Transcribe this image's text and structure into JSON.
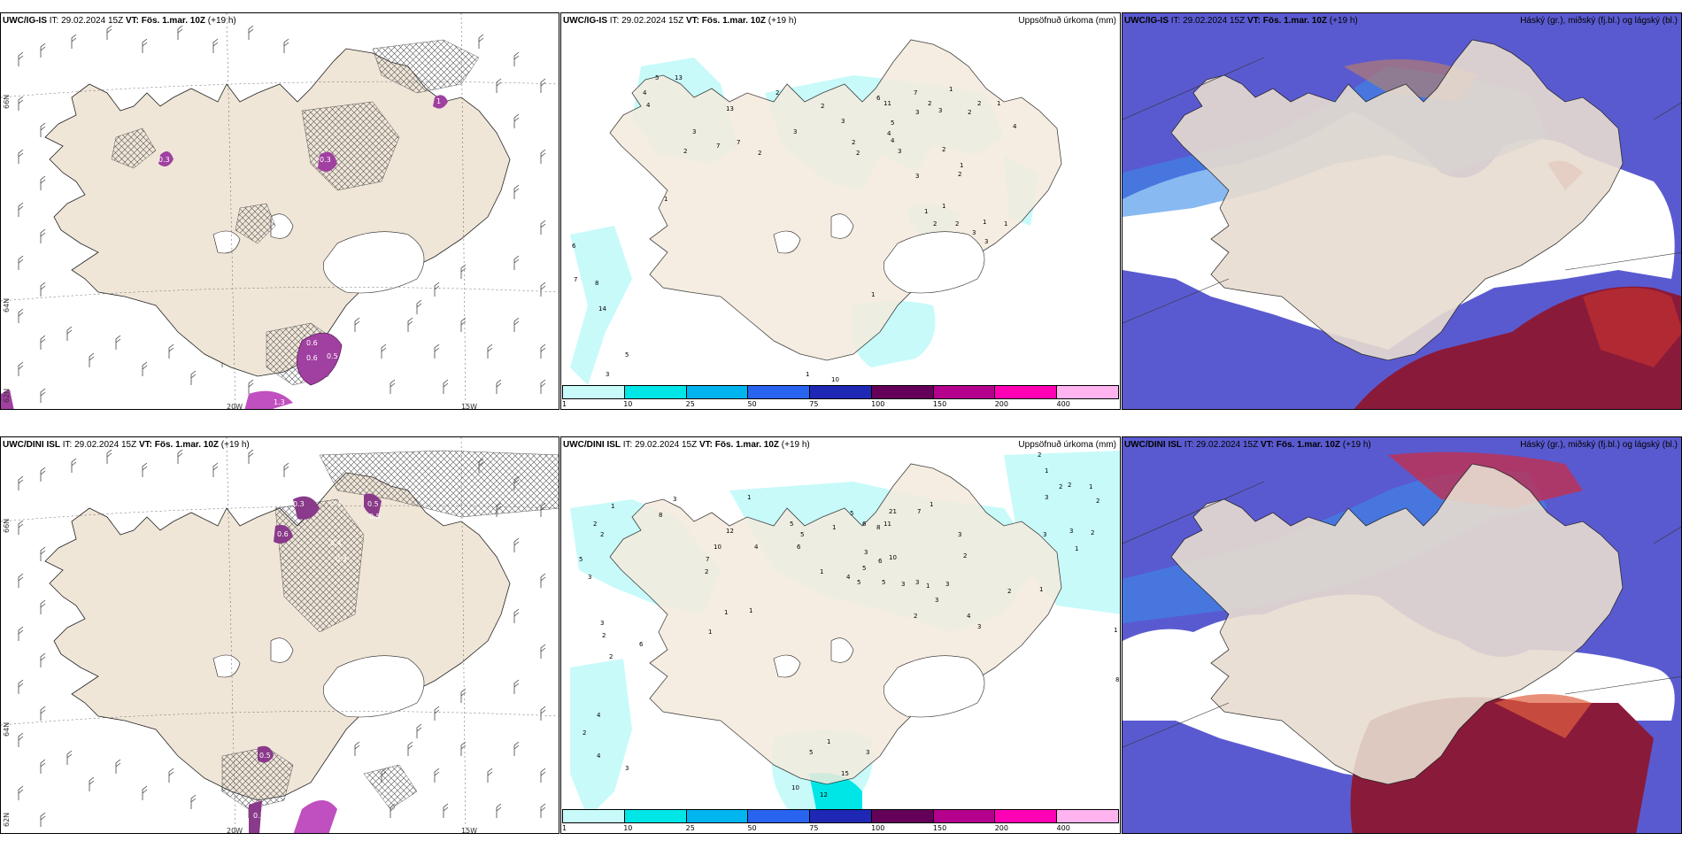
{
  "rows": [
    {
      "panels": [
        {
          "model": "UWC/IG-IS",
          "it_label": "IT:",
          "it": "29.02.2024 15Z",
          "vt_label": "VT: Fös. 1.mar. 10Z",
          "lead": "(+19 h)",
          "right": ""
        },
        {
          "model": "UWC/IG-IS",
          "it_label": "IT:",
          "it": "29.02.2024 15Z",
          "vt_label": "VT: Fös. 1.mar. 10Z",
          "lead": "(+19 h)",
          "right": "Uppsöfnuð úrkoma (mm)"
        },
        {
          "model": "UWC/IG-IS",
          "it_label": "IT:",
          "it": "29.02.2024 15Z",
          "vt_label": "VT: Fös. 1.mar. 10Z",
          "lead": "(+19 h)",
          "right": "Háský (gr.), miðský (fj.bl.) og lágský (bl.)"
        }
      ]
    },
    {
      "panels": [
        {
          "model": "UWC/DINI ISL",
          "it_label": "IT:",
          "it": "29.02.2024 15Z",
          "vt_label": "VT: Fös. 1.mar. 10Z",
          "lead": "(+19 h)",
          "right": ""
        },
        {
          "model": "UWC/DINI ISL",
          "it_label": "IT:",
          "it": "29.02.2024 15Z",
          "vt_label": "VT: Fös. 1.mar. 10Z",
          "lead": "(+19 h)",
          "right": "Uppsöfnuð úrkoma (mm)"
        },
        {
          "model": "UWC/DINI ISL",
          "it_label": "IT:",
          "it": "29.02.2024 15Z",
          "vt_label": "VT: Fös. 1.mar. 10Z",
          "lead": "(+19 h)",
          "right": "Háský (gr.), miðský (fj.bl.) og lágský (bl.)"
        }
      ]
    }
  ],
  "axes": {
    "lat_66": "66N",
    "lat_64": "64N",
    "lat_62": "62N",
    "lon_20": "20W",
    "lon_15": "15W"
  },
  "colorbar": {
    "ticks": [
      "1",
      "10",
      "25",
      "50",
      "75",
      "100",
      "150",
      "200",
      "400"
    ],
    "colors": [
      "#c8fafa",
      "#00e6e6",
      "#00b4f0",
      "#2864f0",
      "#1e28b4",
      "#64005a",
      "#b4008c",
      "#ff00b4",
      "#ffb4f0"
    ]
  },
  "precip_labels": {
    "top": [
      "5",
      "13",
      "4",
      "4",
      "3",
      "2",
      "2",
      "7",
      "13",
      "3",
      "2",
      "7",
      "1",
      "2",
      "3",
      "2",
      "2",
      "4",
      "6",
      "11",
      "7",
      "1",
      "2",
      "5",
      "4",
      "3",
      "3",
      "2",
      "2",
      "3",
      "2",
      "1",
      "2",
      "3",
      "1",
      "4",
      "1",
      "2",
      "1",
      "1",
      "1",
      "2",
      "3",
      "3",
      "1",
      "6",
      "7",
      "8",
      "14",
      "5",
      "3",
      "10",
      "1"
    ],
    "bottom": [
      "2",
      "1",
      "3",
      "8",
      "1",
      "12",
      "5",
      "1",
      "2",
      "2",
      "5",
      "6",
      "7",
      "10",
      "4",
      "2",
      "1",
      "1",
      "1",
      "5",
      "6",
      "8",
      "11",
      "21",
      "7",
      "1",
      "3",
      "5",
      "10",
      "6",
      "4",
      "5",
      "5",
      "3",
      "3",
      "1",
      "3",
      "2",
      "3",
      "3",
      "2",
      "4",
      "3",
      "2",
      "1",
      "1",
      "2",
      "2",
      "1",
      "2",
      "3",
      "3",
      "3",
      "2",
      "1",
      "1",
      "8",
      "5",
      "3",
      "3",
      "2",
      "2",
      "4",
      "2",
      "4",
      "3",
      "5",
      "10",
      "12",
      "15",
      "3",
      "1",
      "1",
      "6"
    ]
  },
  "wind_labels": {
    "top": [
      "0.3",
      "0.3",
      "1",
      "0.6",
      "0.6",
      "0.5",
      "0.4",
      "0.5",
      "1.3"
    ],
    "bottom": [
      "0.5",
      "0.5",
      "0.3",
      "0.4",
      "0.6",
      "0.4",
      "0.3",
      "0.5",
      "0.3"
    ]
  }
}
